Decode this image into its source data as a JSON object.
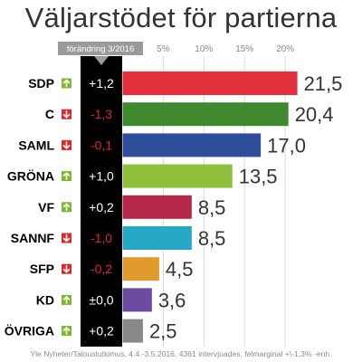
{
  "title": "Väljarstödet för partierna",
  "footnote": "Yle Nyheter/Taloustutkimus, 4.4.-3.5.2016, 4361 intervjuades, felmarginal +\\-1,3% -enh.",
  "chart_data": {
    "type": "bar",
    "orientation": "horizontal",
    "title": "Väljarstödet för partierna",
    "change_column_label": "förändring 3/2016",
    "x_ticks": [
      "5%",
      "10%",
      "15%",
      "20%"
    ],
    "x_tick_values": [
      5,
      10,
      15,
      20
    ],
    "xlim": [
      0,
      22
    ],
    "grid": true,
    "categories": [
      "SDP",
      "C",
      "SAML",
      "GRÖNA",
      "VF",
      "SANNF",
      "SFP",
      "KD",
      "ÖVRIGA"
    ],
    "values": [
      21.5,
      20.4,
      17.0,
      13.5,
      8.5,
      8.5,
      4.5,
      3.6,
      2.5
    ],
    "value_labels": [
      "21,5",
      "20,4",
      "17,0",
      "13,5",
      "8,5",
      "8,5",
      "4,5",
      "3,6",
      "2,5"
    ],
    "changes": [
      1.2,
      -1.3,
      -0.1,
      1.0,
      0.2,
      -1.0,
      -0.2,
      0.0,
      0.2
    ],
    "change_labels": [
      "+1,2",
      "-1,3",
      "-0,1",
      "+1,0",
      "+0,2",
      "-1,0",
      "-0,2",
      "±0,0",
      "+0,2"
    ],
    "directions": [
      "up",
      "down",
      "down",
      "up",
      "up",
      "down",
      "down",
      "up",
      "up"
    ],
    "bar_colors": [
      "#e3303c",
      "#3f8a2e",
      "#2e4d9b",
      "#8fc03c",
      "#b5284a",
      "#27a8c4",
      "#e09a2e",
      "#6a4ba0",
      "#888888"
    ]
  },
  "colors": {
    "up": "#7cb82f",
    "down": "#e0262b",
    "change_column_bg": "#000000",
    "change_label_bg": "#9a9a9a",
    "gridline": "#d9d9d9",
    "tick_text": "#888888",
    "value_text": "#333333"
  }
}
